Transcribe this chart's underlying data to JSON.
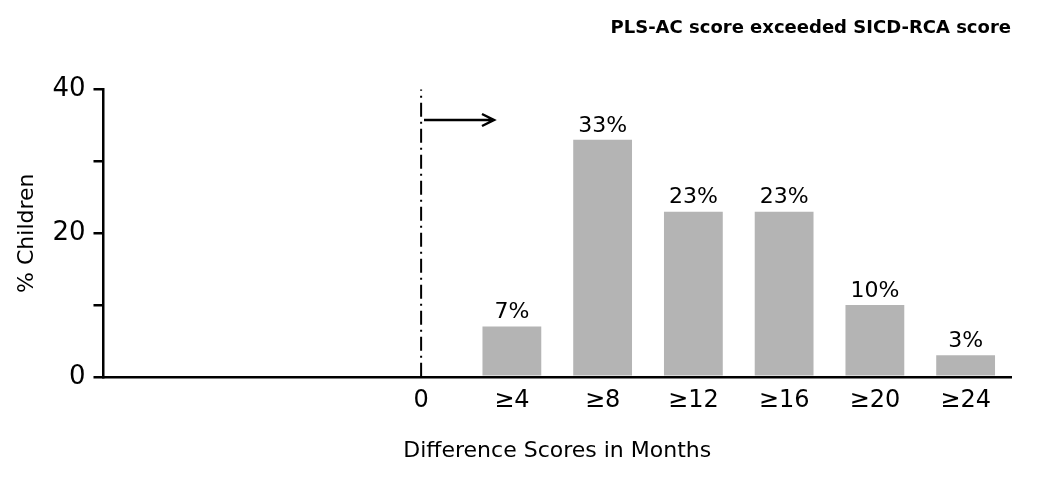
{
  "chart_data": {
    "type": "bar",
    "title": "PLS-AC score exceeded SICD-RCA score",
    "xlabel": "Difference Scores in Months",
    "ylabel": "% Children",
    "categories": [
      null,
      null,
      null,
      "0",
      "≥4",
      "≥8",
      "≥12",
      "≥16",
      "≥20",
      "≥24"
    ],
    "values": [
      null,
      null,
      null,
      null,
      7,
      33,
      23,
      23,
      10,
      3
    ],
    "value_labels": [
      null,
      null,
      null,
      null,
      "7%",
      "33%",
      "23%",
      "23%",
      "10%",
      "3%"
    ],
    "color": "#b4b4b4",
    "ylim": [
      0,
      40
    ],
    "yticks": [
      0,
      {
        "value": 10,
        "label": null
      },
      20,
      {
        "value": 30,
        "label": null
      },
      40
    ],
    "ref_lines": [
      {
        "axis": "x",
        "value": "0",
        "line_style": "dashdot"
      }
    ],
    "grid": false,
    "legend": false
  }
}
